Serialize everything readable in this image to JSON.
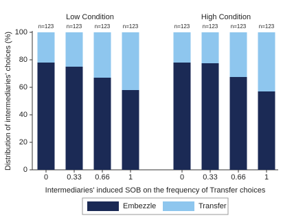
{
  "chart_data": {
    "type": "stacked_bar",
    "ylabel": "Distribution of intermediaries' choices (%)",
    "xlabel": "Intermediaries' induced SOB on the frequency of Transfer choices",
    "ylim": [
      0,
      100
    ],
    "yticks": [
      0,
      20,
      40,
      60,
      80,
      100
    ],
    "grid": false,
    "legend": "bottom",
    "series": [
      {
        "name": "Embezzle",
        "color": "#1b2a55"
      },
      {
        "name": "Transfer",
        "color": "#8ec6ee"
      }
    ],
    "panels": [
      {
        "title": "Low Condition",
        "categories": [
          "0",
          "0.33",
          "0.66",
          "1"
        ],
        "bar_labels": [
          "n=123",
          "n=123",
          "n=123",
          "n=123"
        ],
        "series_values": [
          [
            78,
            75,
            67,
            58
          ],
          [
            22,
            25,
            33,
            42
          ]
        ]
      },
      {
        "title": "High Condition",
        "categories": [
          "0",
          "0.33",
          "0.66",
          "1"
        ],
        "bar_labels": [
          "n=123",
          "n=123",
          "n=123",
          "n=123"
        ],
        "series_values": [
          [
            78,
            77.5,
            67.5,
            57
          ],
          [
            22,
            22.5,
            32.5,
            43
          ]
        ]
      }
    ]
  }
}
